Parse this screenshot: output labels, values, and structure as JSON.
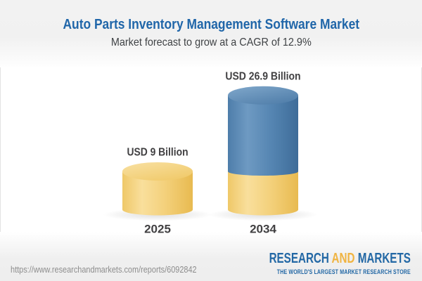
{
  "header": {
    "title": "Auto Parts Inventory Management Software Market",
    "subtitle": "Market forecast to grow at a CAGR of 12.9%"
  },
  "chart_data": {
    "type": "bar",
    "variant": "3d-cylinder-stacked",
    "title": "Auto Parts Inventory Management Software Market",
    "subtitle": "Market forecast to grow at a CAGR of 12.9%",
    "unit": "USD Billion",
    "cagr_percent": 12.9,
    "categories": [
      "2025",
      "2034"
    ],
    "values": [
      9,
      26.9
    ],
    "bars": [
      {
        "category": "2025",
        "label": "USD 9 Billion",
        "total": 9,
        "segments": [
          {
            "value": 9,
            "color": "yellow"
          }
        ]
      },
      {
        "category": "2034",
        "label": "USD 26.9 Billion",
        "total": 26.9,
        "segments": [
          {
            "value": 9,
            "color": "yellow"
          },
          {
            "value": 17.9,
            "color": "blue"
          }
        ]
      }
    ],
    "colors": {
      "yellow": {
        "body": [
          "#EFC868",
          "#F9DF9C",
          "#F3D07A",
          "#E8BA50"
        ],
        "top": [
          "#F8DF9F",
          "#F0C968"
        ]
      },
      "blue": {
        "body": [
          "#4E7DAA",
          "#6E9AC2",
          "#5585B2",
          "#3E6C99"
        ],
        "top": [
          "#7DA5C9",
          "#4F7DA9"
        ]
      },
      "label_text": "#414042"
    },
    "legend": null,
    "grid": false
  },
  "footer": {
    "url": "https://www.researchandmarkets.com/reports/6092842",
    "logo": {
      "word1": "RESEARCH",
      "word2": "AND",
      "word3": "MARKETS",
      "tagline": "THE WORLD'S LARGEST MARKET RESEARCH STORE"
    }
  }
}
